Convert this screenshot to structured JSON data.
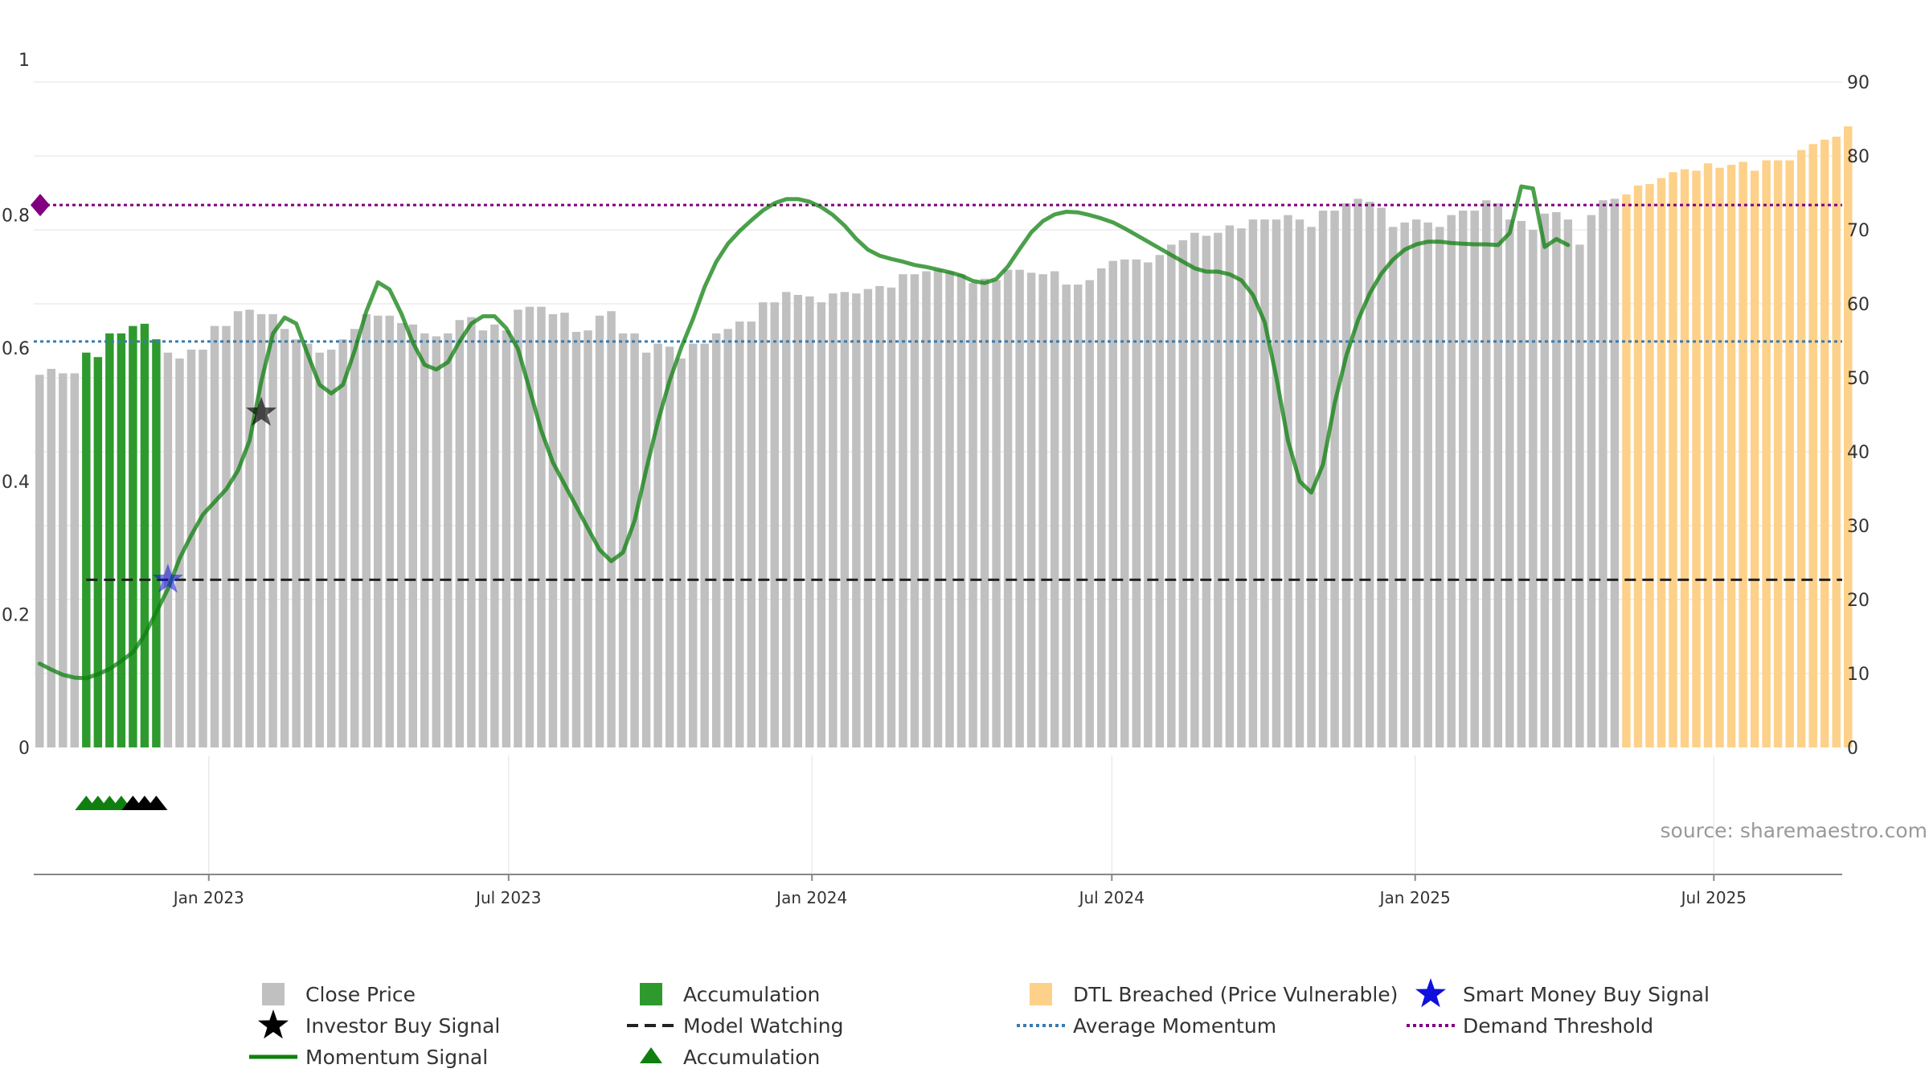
{
  "colors": {
    "close": "#c0c0c0",
    "accumulation": "#2e9a2e",
    "dtl": "#fdd18a",
    "momentum": "#0f800f",
    "average": "#3a7bb0",
    "demand": "#800080",
    "watching": "#222222",
    "smart_money": "#1010dd",
    "investor": "#000000",
    "grid": "#ebebeb"
  },
  "source": "source: sharemaestro.com",
  "legend": [
    {
      "icon": "gray-square-icon",
      "label": "Close Price"
    },
    {
      "icon": "green-square-icon",
      "label": "Accumulation"
    },
    {
      "icon": "orange-square-icon",
      "label": "DTL Breached (Price Vulnerable)"
    },
    {
      "icon": "blue-star-icon",
      "label": "Smart Money Buy Signal"
    },
    {
      "icon": "black-star-icon",
      "label": "Investor Buy Signal"
    },
    {
      "icon": "black-dashed-line-icon",
      "label": "Model Watching"
    },
    {
      "icon": "blue-dotted-line-icon",
      "label": "Average Momentum"
    },
    {
      "icon": "purple-dotted-line-icon",
      "label": "Demand Threshold"
    },
    {
      "icon": "green-line-icon",
      "label": "Momentum Signal"
    },
    {
      "icon": "green-triangle-icon",
      "label": "Accumulation"
    }
  ],
  "chart_data": {
    "type": "bar",
    "title": "",
    "x_range": [
      0,
      155
    ],
    "left_axis": {
      "ylim": [
        0,
        1
      ],
      "ticks": [
        0,
        0.2,
        0.4,
        0.6,
        0.8,
        1
      ],
      "tick_labels": [
        "0",
        "0.2",
        "0.4",
        "0.6",
        "0.8",
        "1"
      ]
    },
    "right_axis": {
      "ylim": [
        0,
        90
      ],
      "ticks": [
        0,
        10,
        20,
        30,
        40,
        50,
        60,
        70,
        80,
        90
      ],
      "tick_labels": [
        "0",
        "10",
        "20",
        "30",
        "40",
        "50",
        "60",
        "70",
        "80",
        "90"
      ]
    },
    "x_ticks": [
      {
        "x": 14.5,
        "label": "Jan 2023"
      },
      {
        "x": 40.2,
        "label": "Jul 2023"
      },
      {
        "x": 66.2,
        "label": "Jan 2024"
      },
      {
        "x": 91.9,
        "label": "Jul 2024"
      },
      {
        "x": 117.9,
        "label": "Jan 2025"
      },
      {
        "x": 143.5,
        "label": "Jul 2025"
      }
    ],
    "close_price": [
      50.4,
      51.2,
      50.6,
      50.6,
      53.4,
      52.8,
      56,
      56,
      57,
      57.3,
      55.2,
      53.4,
      52.6,
      53.8,
      53.8,
      57,
      57,
      59,
      59.2,
      58.6,
      58.6,
      56.6,
      55.2,
      54.6,
      53.4,
      53.8,
      55.2,
      56.6,
      58.6,
      58.4,
      58.4,
      57.4,
      57.2,
      56,
      55.6,
      56,
      57.8,
      58.2,
      56.4,
      57.2,
      56.4,
      59.2,
      59.6,
      59.6,
      58.6,
      58.8,
      56.2,
      56.4,
      58.4,
      59,
      56,
      56,
      53.4,
      54.6,
      54.2,
      52.6,
      54.6,
      54.6,
      56,
      56.6,
      57.6,
      57.6,
      60.2,
      60.2,
      61.6,
      61.2,
      61,
      60.2,
      61.4,
      61.6,
      61.4,
      62,
      62.4,
      62.2,
      64,
      64,
      64.4,
      64.6,
      64.4,
      64,
      62.8,
      63.4,
      63.2,
      64.6,
      64.6,
      64.2,
      64,
      64.4,
      62.6,
      62.6,
      63.2,
      64.8,
      65.8,
      66,
      66,
      65.6,
      66.6,
      68,
      68.6,
      69.6,
      69.2,
      69.6,
      70.6,
      70.2,
      71.4,
      71.4,
      71.4,
      72,
      71.4,
      70.4,
      72.6,
      72.6,
      73.6,
      74.2,
      73.8,
      73,
      70.4,
      71,
      71.4,
      71,
      70.4,
      72,
      72.6,
      72.6,
      74,
      73.6,
      71.4,
      71.2,
      70,
      72.2,
      72.4,
      71.4,
      68,
      72,
      74,
      74.2,
      74.8,
      76,
      76.2,
      77,
      77.8,
      78.2,
      78,
      79,
      78.4,
      78.8,
      79.2,
      78,
      79.4,
      79.4,
      79.4,
      80.8,
      81.6,
      82.2,
      82.6,
      84
    ],
    "accumulation_range": [
      4,
      10
    ],
    "dtl_range": [
      136,
      155
    ],
    "momentum": [
      0.126,
      0.117,
      0.109,
      0.105,
      0.104,
      0.11,
      0.118,
      0.13,
      0.143,
      0.169,
      0.203,
      0.238,
      0.284,
      0.319,
      0.35,
      0.369,
      0.388,
      0.416,
      0.461,
      0.55,
      0.622,
      0.646,
      0.637,
      0.59,
      0.545,
      0.532,
      0.545,
      0.596,
      0.655,
      0.699,
      0.688,
      0.652,
      0.608,
      0.575,
      0.568,
      0.579,
      0.61,
      0.637,
      0.648,
      0.648,
      0.63,
      0.599,
      0.538,
      0.476,
      0.428,
      0.395,
      0.362,
      0.329,
      0.297,
      0.28,
      0.293,
      0.341,
      0.418,
      0.49,
      0.551,
      0.601,
      0.644,
      0.692,
      0.73,
      0.757,
      0.776,
      0.792,
      0.807,
      0.818,
      0.824,
      0.824,
      0.82,
      0.812,
      0.8,
      0.784,
      0.764,
      0.748,
      0.739,
      0.734,
      0.73,
      0.725,
      0.722,
      0.718,
      0.714,
      0.709,
      0.701,
      0.698,
      0.704,
      0.723,
      0.749,
      0.774,
      0.791,
      0.801,
      0.805,
      0.804,
      0.8,
      0.795,
      0.789,
      0.78,
      0.77,
      0.76,
      0.75,
      0.74,
      0.73,
      0.72,
      0.715,
      0.715,
      0.711,
      0.702,
      0.68,
      0.639,
      0.556,
      0.461,
      0.4,
      0.383,
      0.425,
      0.517,
      0.589,
      0.642,
      0.682,
      0.712,
      0.733,
      0.748,
      0.756,
      0.76,
      0.76,
      0.758,
      0.757,
      0.756,
      0.756,
      0.755,
      0.773,
      0.843,
      0.84,
      0.752,
      0.764,
      0.755
    ],
    "average_momentum": 0.61,
    "demand_threshold": 0.815,
    "model_watching": {
      "value": 0.252,
      "x_start": 4
    },
    "smart_money_buy_signal": [
      {
        "x": 11,
        "y": 0.252
      }
    ],
    "investor_buy_signal": [
      {
        "x": 19,
        "y": 0.503
      }
    ],
    "accumulation_markers": {
      "green_x": [
        4,
        5,
        6,
        7
      ],
      "black_x": [
        8,
        9,
        10
      ]
    }
  }
}
